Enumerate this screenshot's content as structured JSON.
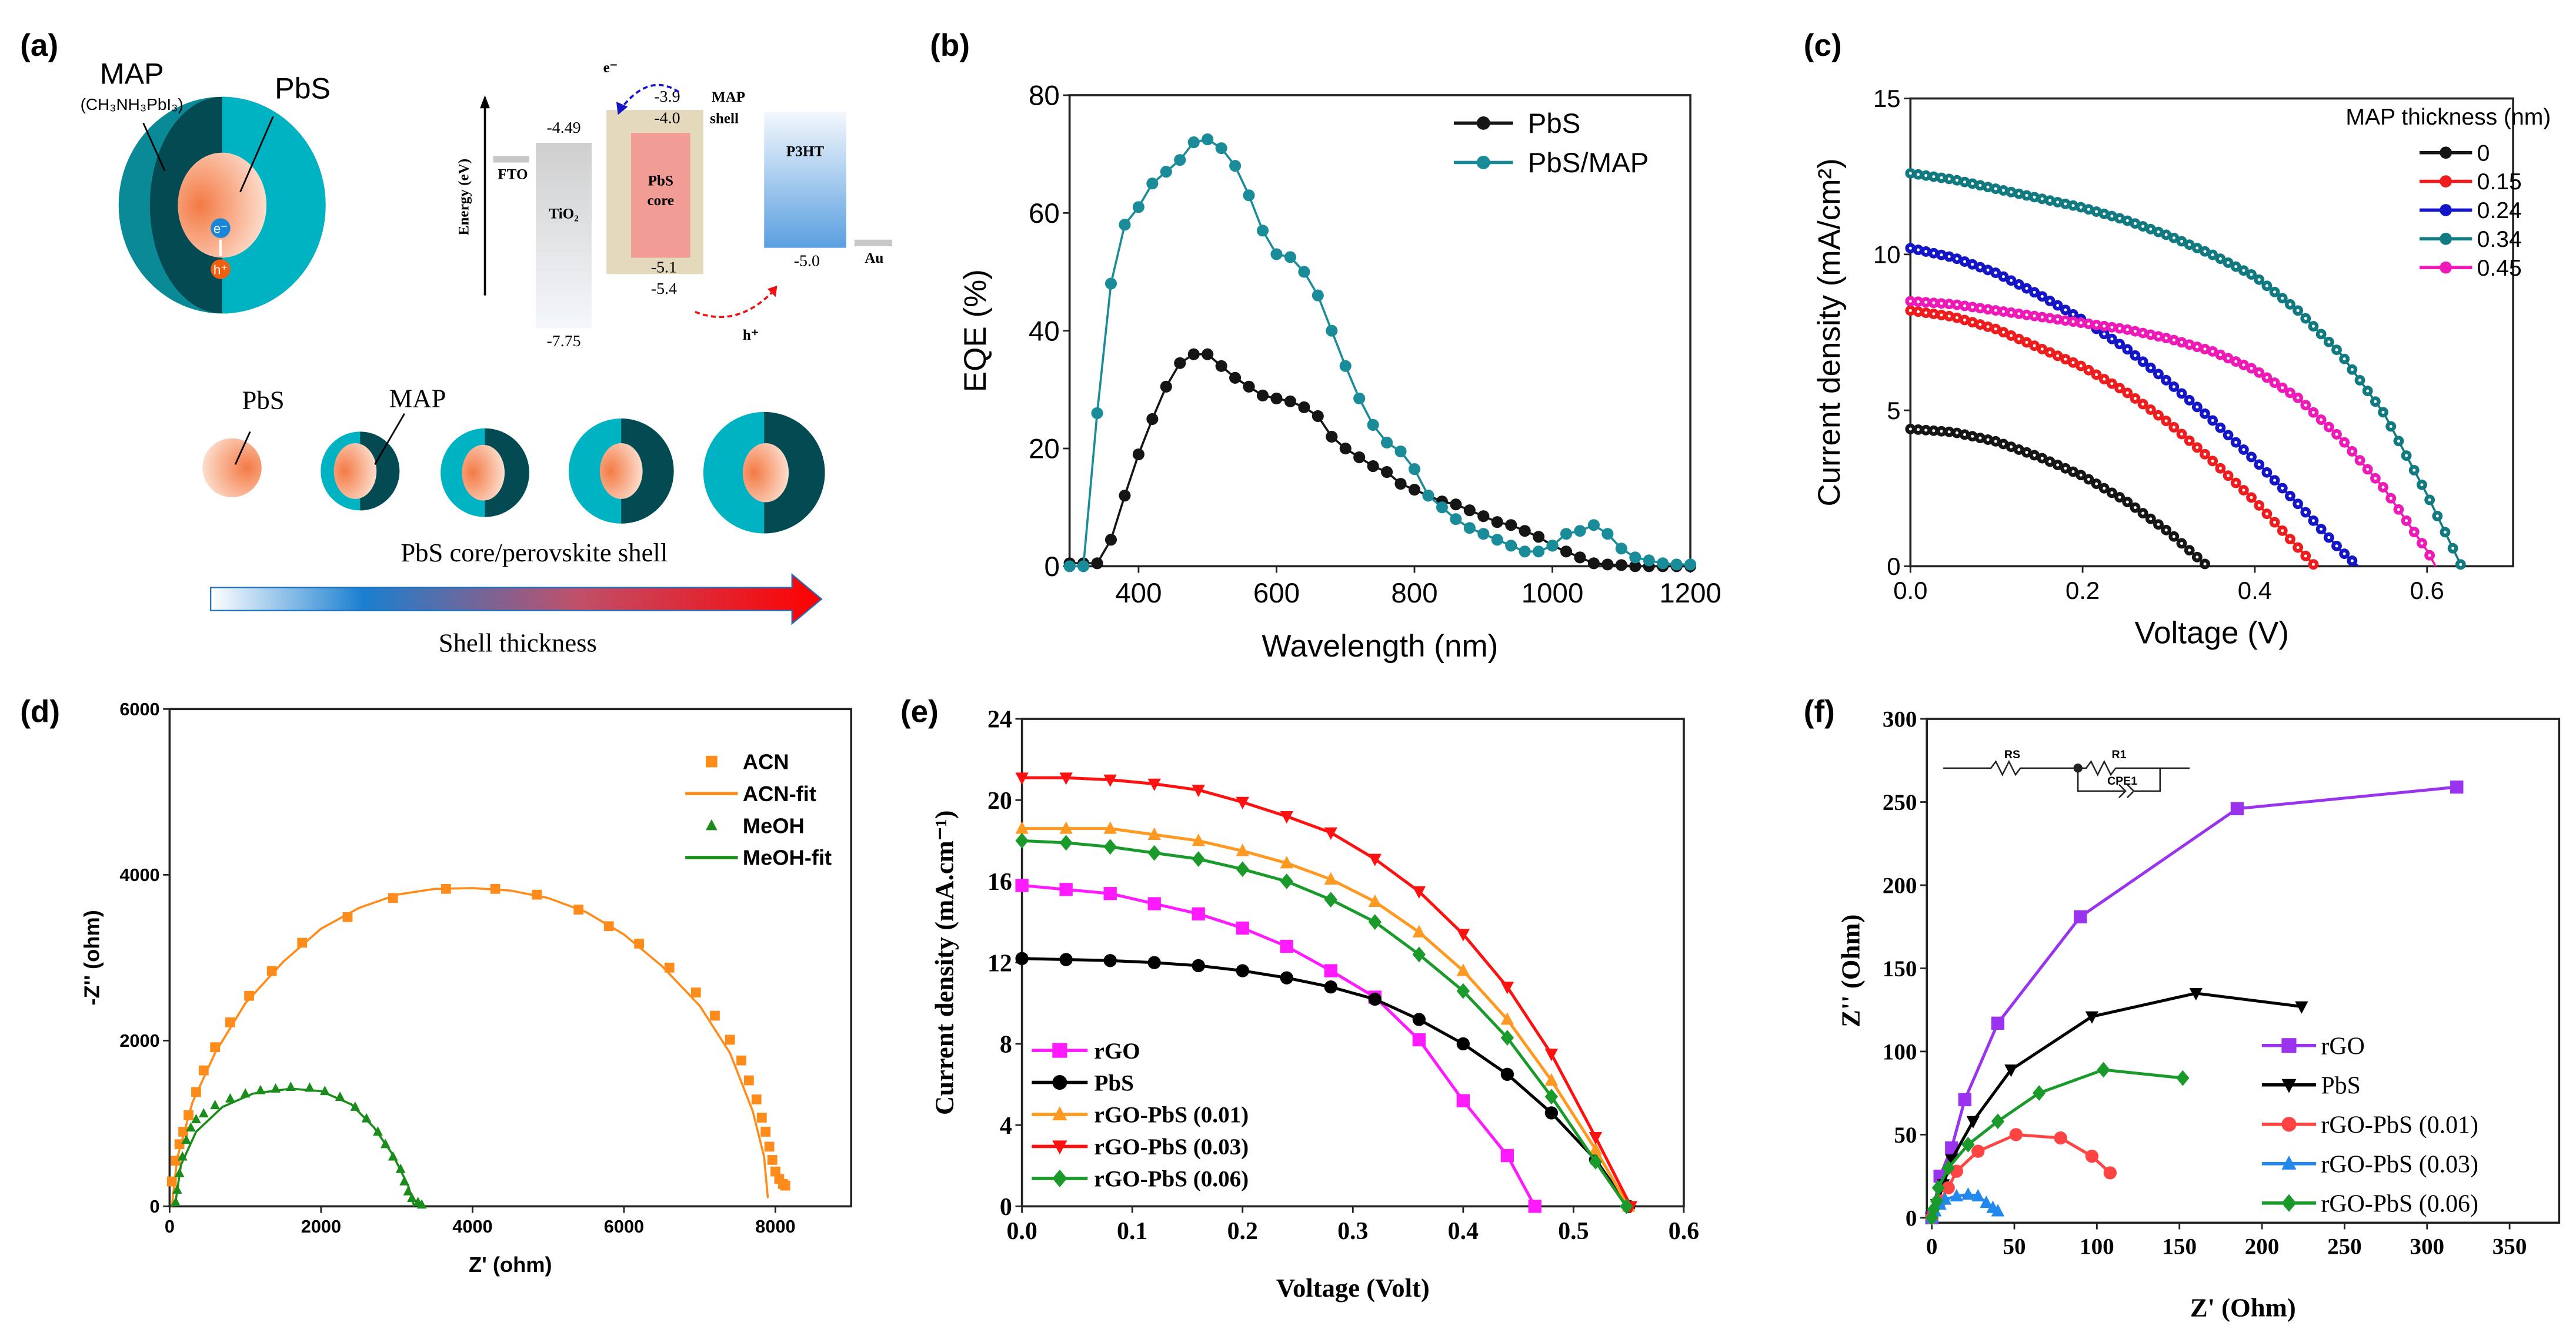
{
  "panel_labels": [
    "(a)",
    "(b)",
    "(c)",
    "(d)",
    "(e)",
    "(f)"
  ],
  "panel_a": {
    "map_label": "MAP",
    "map_formula": "(CH₃NH₃PbI₃)",
    "pbs_label": "PbS",
    "electron": "e⁻",
    "hole": "h⁺",
    "energy_axis": "Energy (eV)",
    "fto": "FTO",
    "tio2": "TiO₂",
    "tio2_cb": "-4.49",
    "tio2_vb": "-7.75",
    "map_cb": "-3.9",
    "map_word": "MAP",
    "pbs_cb": "-4.0",
    "shell_word": "shell",
    "core_line1": "PbS",
    "core_line2": "core",
    "pbs_vb": "-5.1",
    "map_vb": "-5.4",
    "p3ht": "P3HT",
    "p3ht_homo": "-5.0",
    "au": "Au",
    "e_transfer": "e⁻",
    "h_transfer": "h⁺",
    "row_pbs": "PbS",
    "row_map": "MAP",
    "row_caption": "PbS core/perovskite shell",
    "arrow_caption": "Shell thickness",
    "colors": {
      "shell_light": "#00b3c2",
      "shell_dark": "#034a52",
      "core": "#f5895a",
      "map_box": "#e5d9bd",
      "core_box": "#f29c96",
      "p3ht": "#5a9fe0"
    }
  },
  "chart_data": [
    {
      "id": "b",
      "type": "line",
      "xlabel": "Wavelength (nm)",
      "ylabel": "EQE (%)",
      "xlim": [
        300,
        1200
      ],
      "ylim": [
        0,
        80
      ],
      "xticks": [
        "400",
        "600",
        "800",
        "1000",
        "1200"
      ],
      "yticks": [
        "0",
        "20",
        "40",
        "60",
        "80"
      ],
      "legend": "top-right",
      "x": [
        300,
        320,
        340,
        360,
        380,
        400,
        420,
        440,
        460,
        480,
        500,
        520,
        540,
        560,
        580,
        600,
        620,
        640,
        660,
        680,
        700,
        720,
        740,
        760,
        780,
        800,
        820,
        840,
        860,
        880,
        900,
        920,
        940,
        960,
        980,
        1000,
        1020,
        1040,
        1060,
        1080,
        1100,
        1120,
        1140,
        1160,
        1180,
        1200
      ],
      "series": [
        {
          "name": "PbS",
          "color": "#151515",
          "marker": "circle",
          "values": [
            0.5,
            0.5,
            0.5,
            4.5,
            12,
            19,
            25,
            30.5,
            34.5,
            36,
            36,
            34,
            32,
            30.5,
            29,
            28.5,
            28,
            27,
            25.5,
            22,
            20,
            18.5,
            17,
            16,
            14,
            13,
            12,
            11,
            10.5,
            9.5,
            8.5,
            7.5,
            7,
            6,
            5,
            3.5,
            2.5,
            1.5,
            0.5,
            0.3,
            0.2,
            0,
            0,
            0,
            0,
            0
          ]
        },
        {
          "name": "PbS/MAP",
          "color": "#1a8c99",
          "marker": "circle",
          "values": [
            0,
            0,
            26,
            48,
            58,
            61,
            65,
            67,
            69,
            72,
            72.5,
            71,
            68,
            63,
            57,
            53,
            52.5,
            50,
            46,
            40,
            34,
            28.5,
            24,
            21,
            19.5,
            16.5,
            12,
            10,
            8,
            6.5,
            5.5,
            4.5,
            3.5,
            2.5,
            2.5,
            3.5,
            5.5,
            6,
            7,
            5.5,
            3,
            1.5,
            1,
            0.5,
            0.3,
            0.3
          ]
        }
      ]
    },
    {
      "id": "c",
      "type": "line",
      "xlabel": "Voltage (V)",
      "ylabel": "Current density (mA/cm²)",
      "xlim": [
        0,
        0.7
      ],
      "ylim": [
        0,
        15
      ],
      "xticks": [
        "0.0",
        "0.2",
        "0.4",
        "0.6"
      ],
      "yticks": [
        "0",
        "5",
        "10",
        "15"
      ],
      "legend_title": "MAP thickness (nm)",
      "legend": "top-right",
      "series": [
        {
          "name": "0",
          "color": "#151515",
          "marker": "circle",
          "x": [
            0,
            0.05,
            0.1,
            0.15,
            0.2,
            0.25,
            0.3,
            0.345
          ],
          "values": [
            4.4,
            4.3,
            4.0,
            3.5,
            2.9,
            2.1,
            1.1,
            0
          ]
        },
        {
          "name": "0.15",
          "color": "#ee1c1c",
          "marker": "circle",
          "x": [
            0,
            0.05,
            0.1,
            0.15,
            0.2,
            0.25,
            0.3,
            0.35,
            0.4,
            0.45,
            0.47
          ],
          "values": [
            8.2,
            8.0,
            7.6,
            7.0,
            6.4,
            5.6,
            4.6,
            3.4,
            2.1,
            0.6,
            0
          ]
        },
        {
          "name": "0.24",
          "color": "#1515c8",
          "marker": "circle",
          "x": [
            0,
            0.05,
            0.1,
            0.15,
            0.2,
            0.25,
            0.3,
            0.35,
            0.4,
            0.45,
            0.5,
            0.52
          ],
          "values": [
            10.2,
            9.9,
            9.4,
            8.7,
            7.9,
            7.0,
            5.9,
            4.7,
            3.4,
            2.0,
            0.5,
            0
          ]
        },
        {
          "name": "0.34",
          "color": "#117a80",
          "marker": "circle",
          "x": [
            0,
            0.05,
            0.1,
            0.15,
            0.2,
            0.25,
            0.3,
            0.35,
            0.4,
            0.45,
            0.5,
            0.55,
            0.6,
            0.64
          ],
          "values": [
            12.6,
            12.4,
            12.1,
            11.8,
            11.5,
            11.1,
            10.6,
            10.0,
            9.3,
            8.2,
            6.8,
            4.9,
            2.3,
            0
          ]
        },
        {
          "name": "0.45",
          "color": "#ee1ab8",
          "marker": "circle",
          "x": [
            0,
            0.05,
            0.1,
            0.15,
            0.2,
            0.25,
            0.3,
            0.35,
            0.4,
            0.45,
            0.5,
            0.55,
            0.6,
            0.61
          ],
          "values": [
            8.5,
            8.4,
            8.2,
            8.0,
            7.8,
            7.6,
            7.3,
            6.9,
            6.3,
            5.4,
            4.1,
            2.5,
            0.5,
            0
          ]
        }
      ]
    },
    {
      "id": "d",
      "type": "scatter",
      "xlabel": "Z' (ohm)",
      "ylabel": "-Z'' (ohm)",
      "xlim": [
        0,
        9000
      ],
      "ylim": [
        0,
        6000
      ],
      "xticks": [
        "0",
        "2000",
        "4000",
        "6000",
        "8000"
      ],
      "yticks": [
        "0",
        "2000",
        "4000",
        "6000"
      ],
      "legend": "top-right",
      "series": [
        {
          "name": "ACN",
          "color": "#ff8c1a",
          "marker": "square",
          "style": "markers",
          "x": [
            30,
            80,
            130,
            180,
            250,
            350,
            450,
            600,
            800,
            1050,
            1350,
            1750,
            2350,
            2950,
            3650,
            4300,
            4850,
            5400,
            5800,
            6200,
            6600,
            6950,
            7200,
            7400,
            7550,
            7650,
            7750,
            7820,
            7870,
            7920,
            7960,
            8000,
            8050,
            8100,
            8130
          ],
          "values": [
            300,
            550,
            750,
            900,
            1100,
            1380,
            1640,
            1920,
            2220,
            2540,
            2840,
            3180,
            3490,
            3720,
            3830,
            3830,
            3760,
            3580,
            3380,
            3170,
            2880,
            2580,
            2300,
            2010,
            1760,
            1520,
            1290,
            1070,
            900,
            720,
            560,
            420,
            330,
            270,
            250
          ]
        },
        {
          "name": "ACN-fit",
          "color": "#ff8c1a",
          "style": "line",
          "x": [
            30,
            100,
            300,
            600,
            1000,
            1500,
            2000,
            2500,
            3000,
            3500,
            4000,
            4500,
            5000,
            5500,
            6000,
            6500,
            7000,
            7400,
            7700,
            7850,
            7900
          ],
          "values": [
            0,
            580,
            1250,
            1850,
            2450,
            2950,
            3350,
            3600,
            3760,
            3830,
            3840,
            3810,
            3720,
            3550,
            3280,
            2900,
            2420,
            1850,
            1150,
            600,
            100
          ]
        },
        {
          "name": "MeOH",
          "color": "#1a8c1a",
          "marker": "tri-up",
          "style": "markers",
          "x": [
            80,
            100,
            130,
            170,
            220,
            280,
            350,
            450,
            600,
            800,
            1000,
            1200,
            1400,
            1600,
            1850,
            2050,
            2250,
            2450,
            2600,
            2750,
            2850,
            2950,
            3050,
            3100,
            3150,
            3200,
            3280,
            3330
          ],
          "values": [
            50,
            200,
            400,
            600,
            800,
            950,
            1050,
            1120,
            1220,
            1300,
            1360,
            1400,
            1420,
            1440,
            1430,
            1390,
            1320,
            1200,
            1060,
            900,
            750,
            600,
            450,
            300,
            180,
            100,
            50,
            20
          ]
        },
        {
          "name": "MeOH-fit",
          "color": "#1a8c1a",
          "style": "line",
          "x": [
            70,
            150,
            350,
            700,
            1100,
            1600,
            2000,
            2400,
            2700,
            2950,
            3150,
            3230
          ],
          "values": [
            0,
            500,
            900,
            1200,
            1360,
            1420,
            1390,
            1230,
            950,
            620,
            250,
            0
          ]
        }
      ]
    },
    {
      "id": "e",
      "type": "line",
      "xlabel": "Voltage (Volt)",
      "ylabel": "Current density (mA.cm⁻¹)",
      "xlim": [
        0,
        0.6
      ],
      "ylim": [
        0,
        24
      ],
      "xticks": [
        "0.0",
        "0.1",
        "0.2",
        "0.3",
        "0.4",
        "0.5",
        "0.6"
      ],
      "yticks": [
        "0",
        "4",
        "8",
        "12",
        "16",
        "20",
        "24"
      ],
      "legend": "bottom-left",
      "series": [
        {
          "name": "rGO",
          "color": "#ff1aff",
          "marker": "square",
          "x": [
            0,
            0.04,
            0.08,
            0.12,
            0.16,
            0.2,
            0.24,
            0.28,
            0.32,
            0.36,
            0.4,
            0.44,
            0.465
          ],
          "values": [
            15.8,
            15.6,
            15.4,
            14.9,
            14.4,
            13.7,
            12.8,
            11.6,
            10.3,
            8.2,
            5.2,
            2.5,
            0
          ]
        },
        {
          "name": "PbS",
          "color": "#000000",
          "marker": "circle",
          "x": [
            0,
            0.04,
            0.08,
            0.12,
            0.16,
            0.2,
            0.24,
            0.28,
            0.32,
            0.36,
            0.4,
            0.44,
            0.48,
            0.52,
            0.55
          ],
          "values": [
            12.2,
            12.15,
            12.1,
            12.0,
            11.85,
            11.6,
            11.25,
            10.8,
            10.2,
            9.2,
            8.0,
            6.5,
            4.6,
            2.3,
            0
          ]
        },
        {
          "name": "rGO-PbS (0.01)",
          "color": "#ff9922",
          "marker": "tri-up",
          "x": [
            0,
            0.04,
            0.08,
            0.12,
            0.16,
            0.2,
            0.24,
            0.28,
            0.32,
            0.36,
            0.4,
            0.44,
            0.48,
            0.52,
            0.55
          ],
          "values": [
            18.6,
            18.6,
            18.6,
            18.3,
            18.0,
            17.5,
            16.9,
            16.1,
            15.0,
            13.5,
            11.6,
            9.2,
            6.2,
            2.8,
            0
          ]
        },
        {
          "name": "rGO-PbS (0.03)",
          "color": "#ff1111",
          "marker": "tri-down",
          "x": [
            0,
            0.04,
            0.08,
            0.12,
            0.16,
            0.2,
            0.24,
            0.28,
            0.32,
            0.36,
            0.4,
            0.44,
            0.48,
            0.52,
            0.552
          ],
          "values": [
            21.1,
            21.1,
            21.0,
            20.8,
            20.5,
            19.9,
            19.2,
            18.4,
            17.1,
            15.5,
            13.4,
            10.8,
            7.5,
            3.4,
            0
          ]
        },
        {
          "name": "rGO-PbS (0.06)",
          "color": "#1a9a2a",
          "marker": "diamond",
          "x": [
            0,
            0.04,
            0.08,
            0.12,
            0.16,
            0.2,
            0.24,
            0.28,
            0.32,
            0.36,
            0.4,
            0.44,
            0.48,
            0.52,
            0.548
          ],
          "values": [
            18.0,
            17.9,
            17.7,
            17.4,
            17.1,
            16.6,
            16.0,
            15.1,
            14.0,
            12.4,
            10.6,
            8.3,
            5.4,
            2.2,
            0
          ]
        }
      ]
    },
    {
      "id": "f",
      "type": "line",
      "xlabel": "Z' (Ohm)",
      "ylabel": "Z'' (Ohm)",
      "xlim": [
        -3,
        380
      ],
      "ylim": [
        -3,
        300
      ],
      "xticks": [
        "0",
        "50",
        "100",
        "150",
        "200",
        "250",
        "300",
        "350"
      ],
      "yticks": [
        "0",
        "50",
        "100",
        "150",
        "200",
        "250",
        "300"
      ],
      "legend": "bottom-right",
      "inset_circuit": {
        "rs": "RS",
        "r1": "R1",
        "cpe": "CPE1"
      },
      "series": [
        {
          "name": "rGO",
          "color": "#9933ee",
          "marker": "square",
          "x": [
            0,
            5,
            12,
            20,
            40,
            90,
            185,
            318
          ],
          "values": [
            0,
            25,
            42,
            71,
            117,
            181,
            246,
            259
          ]
        },
        {
          "name": "PbS",
          "color": "#000000",
          "marker": "tri-down",
          "x": [
            0,
            3,
            7,
            12,
            25,
            48,
            97,
            160,
            224
          ],
          "values": [
            0,
            8,
            20,
            35,
            58,
            89,
            121,
            135,
            127
          ]
        },
        {
          "name": "rGO-PbS (0.01)",
          "color": "#ff4444",
          "marker": "circle",
          "x": [
            0,
            5,
            10,
            15,
            28,
            51,
            78,
            97,
            108
          ],
          "values": [
            0,
            10,
            18,
            28,
            40,
            50,
            48,
            37,
            27
          ]
        },
        {
          "name": "rGO-PbS (0.03)",
          "color": "#2288ee",
          "marker": "tri-up",
          "x": [
            0,
            2,
            5,
            8,
            15,
            22,
            28,
            33,
            37,
            40
          ],
          "values": [
            0,
            4,
            8,
            11,
            13,
            14,
            13,
            9,
            6,
            4
          ]
        },
        {
          "name": "rGO-PbS (0.06)",
          "color": "#1a9a2a",
          "marker": "diamond",
          "x": [
            0,
            1,
            3,
            4,
            10,
            22,
            40,
            65,
            104,
            152
          ],
          "values": [
            0,
            5,
            10,
            18,
            30,
            44,
            58,
            75,
            89,
            84
          ]
        }
      ]
    }
  ]
}
